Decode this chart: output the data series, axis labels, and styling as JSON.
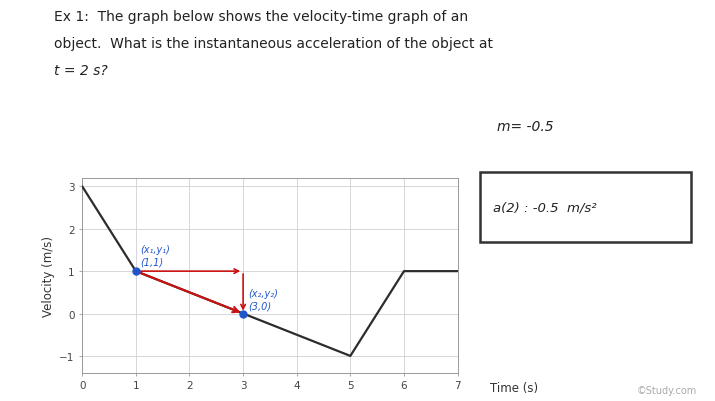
{
  "background_color": "#ffffff",
  "title_line1": "Ex 1:  The graph below shows the velocity-time graph of an",
  "title_line2": "object.  What is the instantaneous acceleration of the object at",
  "title_line3": "t = 2 s?",
  "graph_line_x": [
    0,
    1,
    3,
    5,
    6,
    7
  ],
  "graph_line_y": [
    3,
    1,
    0,
    -1,
    1,
    1
  ],
  "xlabel": "Time (s)",
  "ylabel": "Velocity (m/s)",
  "xlim": [
    0,
    7
  ],
  "ylim": [
    -1.4,
    3.2
  ],
  "xticks": [
    0,
    1,
    2,
    3,
    4,
    5,
    6,
    7
  ],
  "yticks": [
    -1,
    0,
    1,
    2,
    3
  ],
  "point1_x": 1,
  "point1_y": 1,
  "point2_x": 3,
  "point2_y": 0,
  "label1_line1": "(x₁,y₁)",
  "label1_line2": "(1,1)",
  "label2_line1": "(x₂,y₂)",
  "label2_line2": "(3,0)",
  "slope_text": "m= -0.5",
  "answer_text": "a(2) : -0.5  m/s²",
  "grid_color": "#d0d0d0",
  "line_color": "#2c2c2c",
  "red_color": "#cc1111",
  "blue_color": "#2255cc",
  "watermark": "©Study.com",
  "xlabel_xpos": 0.73
}
